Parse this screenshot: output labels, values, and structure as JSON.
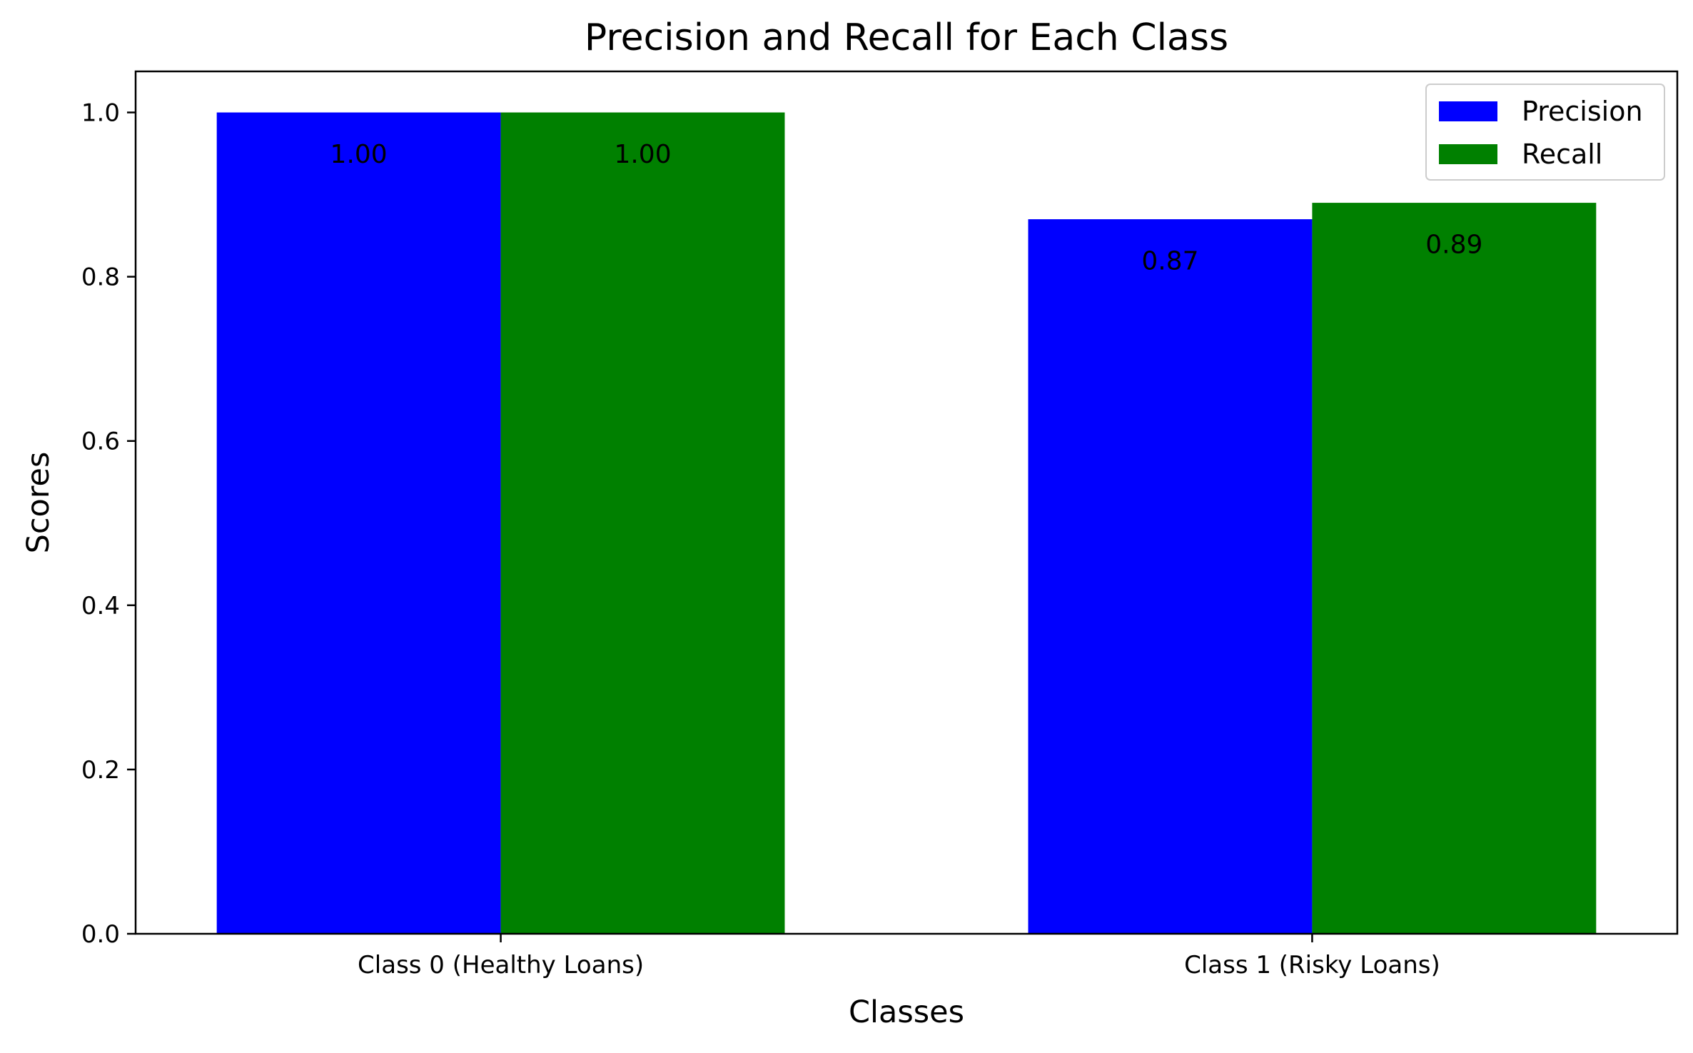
{
  "chart_data": {
    "type": "bar",
    "title": "Precision and Recall for Each Class",
    "xlabel": "Classes",
    "ylabel": "Scores",
    "categories": [
      "Class 0 (Healthy Loans)",
      "Class 1 (Risky Loans)"
    ],
    "series": [
      {
        "name": "Precision",
        "values": [
          1.0,
          0.87
        ],
        "color": "#0000ff",
        "value_labels": [
          "1.00",
          "0.87"
        ]
      },
      {
        "name": "Recall",
        "values": [
          1.0,
          0.89
        ],
        "color": "#008000",
        "value_labels": [
          "1.00",
          "0.89"
        ]
      }
    ],
    "ylim": [
      0,
      1.05
    ],
    "yticks": [
      0.0,
      0.2,
      0.4,
      0.6,
      0.8,
      1.0
    ],
    "ytick_labels": [
      "0.0",
      "0.2",
      "0.4",
      "0.6",
      "0.8",
      "1.0"
    ],
    "grid": false,
    "legend_position": "top-right"
  }
}
